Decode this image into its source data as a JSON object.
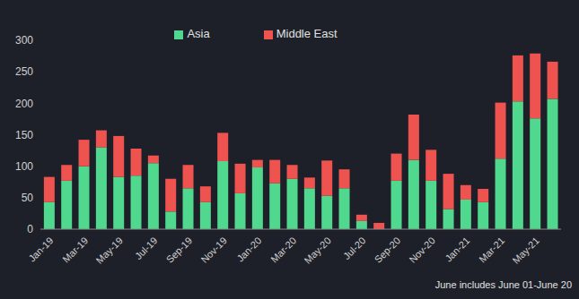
{
  "chart_data": {
    "type": "bar",
    "stacked": true,
    "legend": "top",
    "annotation": "June includes June 01-June 20",
    "categories": [
      "Jan-19",
      null,
      "Mar-19",
      null,
      "May-19",
      null,
      "Jul-19",
      null,
      "Sep-19",
      null,
      "Nov-19",
      null,
      "Jan-20",
      null,
      "Mar-20",
      null,
      "May-20",
      null,
      "Jul-20",
      null,
      "Sep-20",
      null,
      "Nov-20",
      null,
      "Jan-21",
      null,
      "Mar-21",
      null,
      "May-21",
      null
    ],
    "series": [
      {
        "name": "Asia",
        "color": "#4fd88e",
        "values": [
          43,
          77,
          100,
          130,
          83,
          85,
          105,
          28,
          65,
          43,
          108,
          57,
          98,
          73,
          80,
          65,
          53,
          65,
          13,
          0,
          77,
          110,
          77,
          32,
          47,
          43,
          112,
          203,
          176,
          207
        ]
      },
      {
        "name": "Middle East",
        "color": "#ef5350",
        "values": [
          40,
          25,
          42,
          27,
          65,
          43,
          12,
          52,
          37,
          25,
          45,
          47,
          12,
          37,
          22,
          17,
          56,
          30,
          10,
          10,
          43,
          72,
          49,
          56,
          23,
          21,
          89,
          73,
          103,
          59
        ]
      }
    ],
    "ylim": [
      0,
      300
    ],
    "yticks": [
      0,
      50,
      100,
      150,
      200,
      250,
      300
    ]
  }
}
